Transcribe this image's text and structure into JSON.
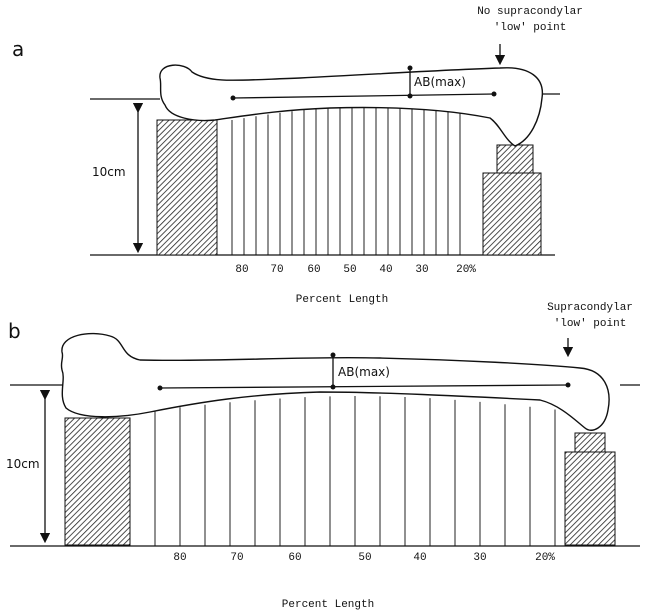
{
  "panels": [
    {
      "label": "a",
      "annotation": [
        "No supracondylar",
        "'low' point"
      ],
      "measure": "AB(max)",
      "height_label": "10cm",
      "ticks": [
        "80",
        "70",
        "60",
        "50",
        "40",
        "30",
        "20%"
      ],
      "axis_title": "Percent Length"
    },
    {
      "label": "b",
      "annotation": [
        "Supracondylar",
        "'low' point"
      ],
      "measure": "AB(max)",
      "height_label": "10cm",
      "ticks": [
        "80",
        "70",
        "60",
        "50",
        "40",
        "30",
        "20%"
      ],
      "axis_title": "Percent Length"
    }
  ]
}
